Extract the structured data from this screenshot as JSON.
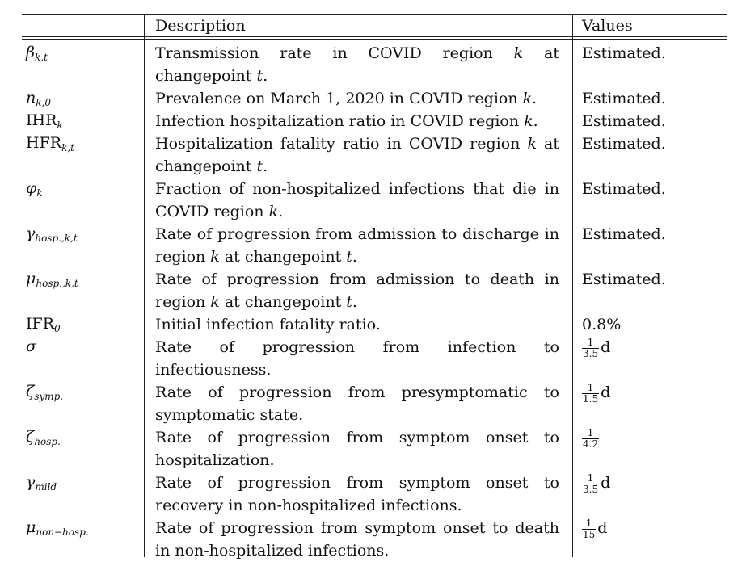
{
  "header": {
    "description": "Description",
    "values": "Values"
  },
  "rows": [
    {
      "sym": "β",
      "sub": "k,t",
      "desc_html": "Transmission rate in COVID region <i>k</i> at changepoint <i>t</i>.",
      "value": "Estimated."
    },
    {
      "sym": "n",
      "sub": "k,0",
      "desc_html": "Prevalence on March 1, 2020 in COVID region <i>k</i>.",
      "value": "Estimated."
    },
    {
      "sym": "IHR",
      "sub": "k",
      "roman": true,
      "desc_html": "Infection hospitalization ratio in COVID region <i>k</i>.",
      "value": "Estimated."
    },
    {
      "sym": "HFR",
      "sub": "k,t",
      "roman": true,
      "desc_html": "Hospitalization fatality ratio in COVID region <i>k</i> at changepoint <i>t</i>.",
      "value": "Estimated."
    },
    {
      "sym": "φ",
      "sub": "k",
      "desc_html": "Fraction of non-hospitalized infections that die in COVID region <i>k</i>.",
      "value": "Estimated."
    },
    {
      "sym": "γ",
      "sub": "hosp.,k,t",
      "desc_html": "Rate of progression from admission to discharge in region <i>k</i> at changepoint <i>t</i>.",
      "value": "Estimated."
    },
    {
      "sym": "μ",
      "sub": "hosp.,k,t",
      "desc_html": "Rate of progression from admission to death in region <i>k</i> at changepoint <i>t</i>.",
      "value": "Estimated."
    },
    {
      "sym": "IFR",
      "sub": "0",
      "roman": true,
      "desc_html": "Initial infection fatality ratio.",
      "value": "0.8%"
    },
    {
      "sym": "σ",
      "sub": "",
      "desc_html": "Rate of progression from infection to infectiousness.",
      "frac_num": "1",
      "frac_den": "3.5",
      "frac_unit": "d"
    },
    {
      "sym": "ζ",
      "sub": "symp.",
      "desc_html": "Rate of progression from presymptomatic to symptomatic state.",
      "frac_num": "1",
      "frac_den": "1.5",
      "frac_unit": "d"
    },
    {
      "sym": "ζ",
      "sub": "hosp.",
      "desc_html": "Rate of progression from symptom onset to hospitalization.",
      "frac_num": "1",
      "frac_den": "4.2",
      "frac_unit": ""
    },
    {
      "sym": "γ",
      "sub": "mild",
      "desc_html": "Rate of progression from symptom onset to recovery in non-hospitalized infections.",
      "frac_num": "1",
      "frac_den": "3.5",
      "frac_unit": "d"
    },
    {
      "sym": "μ",
      "sub": "non−hosp.",
      "desc_html": "Rate of progression from symptom onset to death in non-hospitalized infections.",
      "frac_num": "1",
      "frac_den": "15",
      "frac_unit": "d"
    }
  ]
}
